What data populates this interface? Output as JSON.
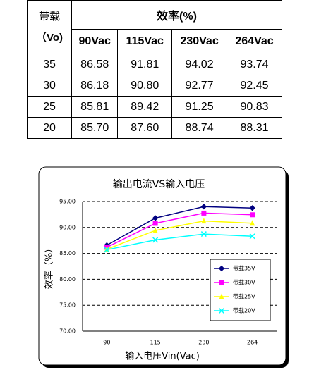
{
  "table": {
    "header": {
      "load": "带载",
      "load_unit": "（Vo)",
      "efficiency": "效率(%)",
      "columns": [
        "90Vac",
        "115Vac",
        "230Vac",
        "264Vac"
      ]
    },
    "rows": [
      [
        "35",
        "86.58",
        "91.81",
        "94.02",
        "93.74"
      ],
      [
        "30",
        "86.18",
        "90.80",
        "92.77",
        "92.45"
      ],
      [
        "25",
        "85.81",
        "89.42",
        "91.25",
        "90.83"
      ],
      [
        "20",
        "85.70",
        "87.60",
        "88.74",
        "88.31"
      ]
    ]
  },
  "chart_data": {
    "type": "line",
    "title": "输出电流VS输入电压",
    "x_label": "输入电压Vin(Vac)",
    "y_label": "效率（%）",
    "categories": [
      "90",
      "115",
      "230",
      "264"
    ],
    "series": [
      {
        "name": "带载35V",
        "color": "#000080",
        "marker": "diamond",
        "values": [
          86.58,
          91.81,
          94.02,
          93.74
        ]
      },
      {
        "name": "带载30V",
        "color": "#ff00ff",
        "marker": "square",
        "values": [
          86.18,
          90.8,
          92.77,
          92.45
        ]
      },
      {
        "name": "带载25V",
        "color": "#ffff00",
        "marker": "triangle",
        "values": [
          85.81,
          89.42,
          91.25,
          90.83
        ]
      },
      {
        "name": "带载20V",
        "color": "#00ffff",
        "marker": "x",
        "values": [
          85.7,
          87.6,
          88.74,
          88.31
        ]
      }
    ],
    "ylim": [
      70,
      95
    ],
    "yticks": [
      {
        "value": 70,
        "label": "70.00"
      },
      {
        "value": 75,
        "label": "75.00"
      },
      {
        "value": 80,
        "label": "80.00"
      },
      {
        "value": 85,
        "label": "85.00"
      },
      {
        "value": 90,
        "label": "90.00"
      },
      {
        "value": 95,
        "label": "95.00"
      }
    ],
    "grid": true
  }
}
